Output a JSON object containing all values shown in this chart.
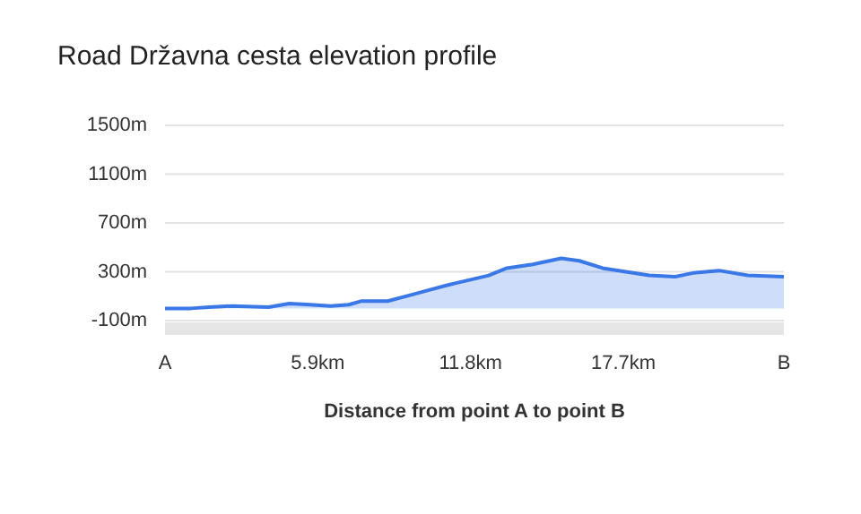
{
  "chart_data": {
    "type": "area",
    "title": "Road Državna cesta elevation profile",
    "xlabel": "Distance from point A to point B",
    "x": [
      0,
      1.0,
      1.7,
      2.6,
      4.0,
      4.8,
      5.6,
      6.4,
      7.1,
      7.6,
      8.6,
      9.5,
      10.2,
      10.9,
      12.5,
      13.2,
      14.2,
      15.3,
      16.0,
      16.9,
      17.8,
      18.7,
      19.7,
      20.4,
      21.4,
      22.5,
      23.9
    ],
    "series": [
      {
        "color": "#3b78e7",
        "values": [
          0,
          0,
          10,
          20,
          10,
          40,
          30,
          20,
          30,
          60,
          60,
          110,
          150,
          190,
          270,
          330,
          360,
          410,
          390,
          330,
          300,
          270,
          260,
          290,
          310,
          270,
          260
        ]
      }
    ],
    "xlim": [
      0,
      23.9
    ],
    "xticks": [
      {
        "value": 0,
        "label": "A"
      },
      {
        "value": 5.9,
        "label": "5.9km"
      },
      {
        "value": 11.8,
        "label": "11.8km"
      },
      {
        "value": 17.7,
        "label": "17.7km"
      },
      {
        "value": 23.9,
        "label": "B"
      }
    ],
    "ylim": [
      -100,
      1500
    ],
    "yticks": [
      {
        "value": -100,
        "label": "-100m"
      },
      {
        "value": 300,
        "label": "300m"
      },
      {
        "value": 700,
        "label": "700m"
      },
      {
        "value": 1100,
        "label": "1100m"
      },
      {
        "value": 1500,
        "label": "1500m"
      }
    ],
    "grid": "y"
  }
}
